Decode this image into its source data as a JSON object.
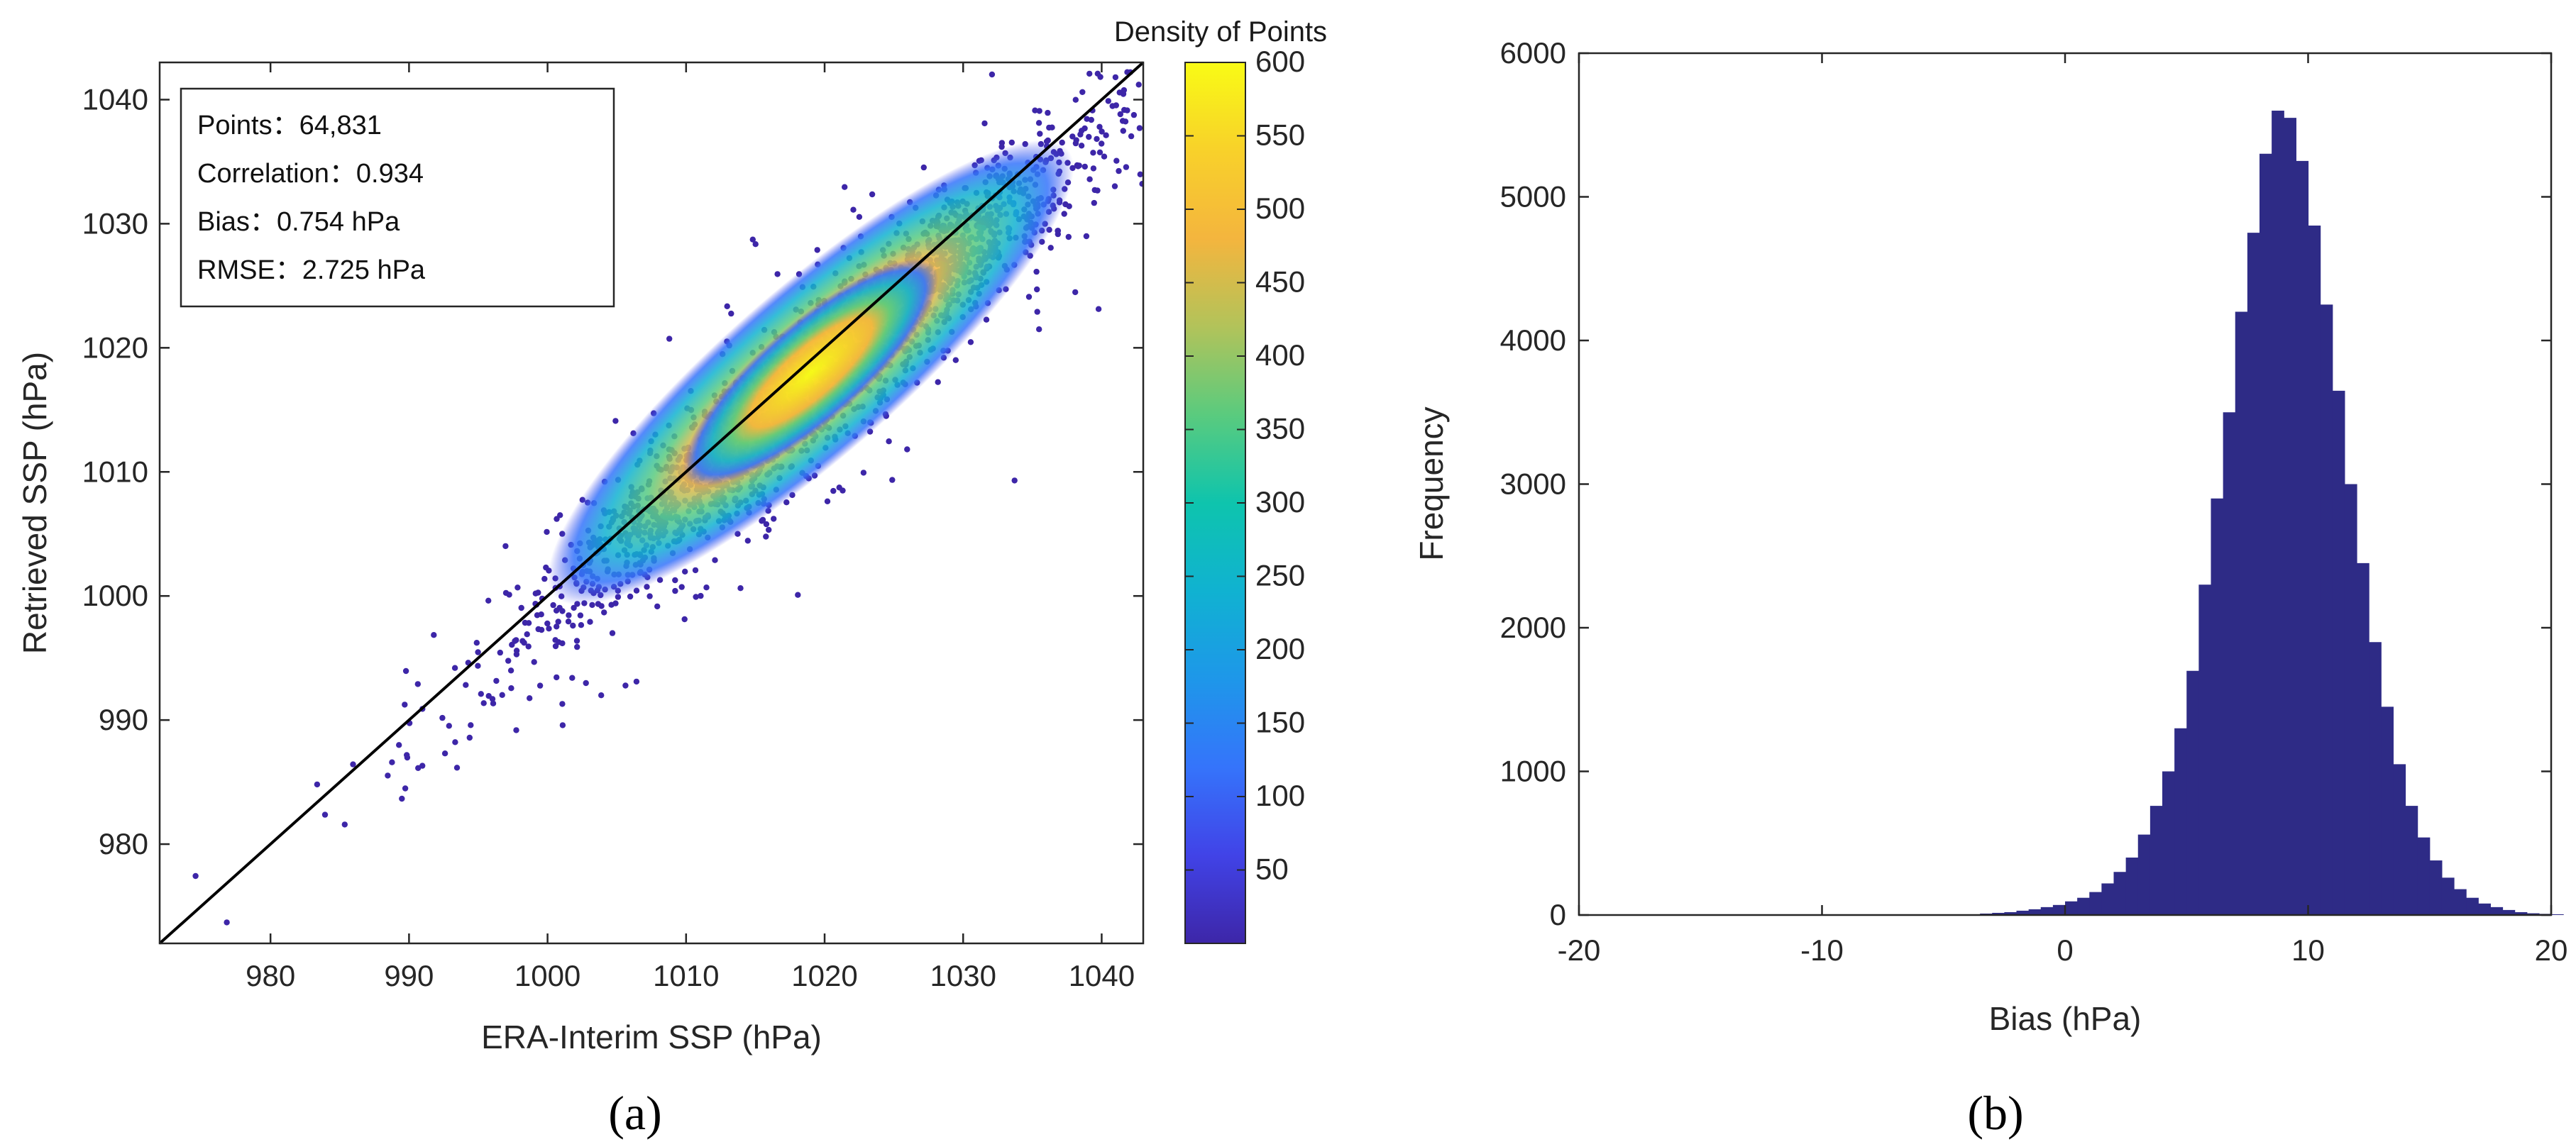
{
  "colors": {
    "histogram_fill": "#2e2b86",
    "identity_line": "#000000",
    "colormap": [
      "#3d26a8",
      "#4143e7",
      "#3574fb",
      "#1e97e9",
      "#10b2d1",
      "#0ec4ad",
      "#5acb7e",
      "#b2c35a",
      "#f4b53e",
      "#f8d12a",
      "#f9fb15"
    ]
  },
  "chart_data": [
    {
      "id": "a",
      "panel_label": "(a)",
      "type": "scatter",
      "subtype": "density-scatter",
      "xlabel": "ERA-Interim SSP (hPa)",
      "ylabel": "Retrieved SSP (hPa)",
      "xlim": [
        972,
        1043
      ],
      "ylim": [
        972,
        1043
      ],
      "xticks": [
        980,
        990,
        1000,
        1010,
        1020,
        1030,
        1040
      ],
      "yticks": [
        980,
        990,
        1000,
        1010,
        1020,
        1030,
        1040
      ],
      "reference_line": {
        "name": "1:1 line",
        "x": [
          972,
          1043
        ],
        "y": [
          972,
          1043
        ]
      },
      "density_center": {
        "x": 1019,
        "y": 1018
      },
      "stats": [
        {
          "label": "Points：",
          "value": "64,831"
        },
        {
          "label": "Correlation：",
          "value": "0.934"
        },
        {
          "label": "Bias：",
          "value": "0.754 hPa"
        },
        {
          "label": "RMSE：",
          "value": "2.725 hPa"
        }
      ],
      "colorbar": {
        "title": "Density of Points",
        "range": [
          0,
          600
        ],
        "ticks": [
          50,
          100,
          150,
          200,
          250,
          300,
          350,
          400,
          450,
          500,
          550,
          600
        ]
      }
    },
    {
      "id": "b",
      "panel_label": "(b)",
      "type": "bar",
      "subtype": "histogram",
      "xlabel": "Bias (hPa)",
      "ylabel": "Frequency",
      "xlim": [
        -20,
        20
      ],
      "ylim": [
        0,
        6000
      ],
      "xticks": [
        -20,
        -10,
        0,
        10,
        20
      ],
      "yticks": [
        0,
        1000,
        2000,
        3000,
        4000,
        5000,
        6000
      ],
      "bin_width": 0.5,
      "bins_start": -20,
      "values": [
        0,
        0,
        0,
        0,
        0,
        0,
        0,
        0,
        0,
        0,
        0,
        0,
        0,
        0,
        0,
        0,
        0,
        0,
        0,
        0,
        0,
        0,
        0,
        0,
        0,
        0,
        0,
        0,
        0,
        0,
        0,
        0,
        5,
        10,
        15,
        20,
        30,
        40,
        55,
        70,
        95,
        120,
        160,
        220,
        300,
        400,
        560,
        760,
        1000,
        1300,
        1700,
        2300,
        2900,
        3500,
        4200,
        4750,
        5300,
        5600,
        5550,
        5250,
        4800,
        4250,
        3650,
        3000,
        2450,
        1900,
        1450,
        1050,
        760,
        540,
        380,
        260,
        180,
        120,
        80,
        55,
        35,
        20,
        12,
        8,
        5,
        0,
        0,
        0,
        0,
        0,
        0,
        0,
        0,
        0,
        0,
        0,
        0,
        0,
        0,
        0,
        0,
        0,
        0,
        0,
        0,
        0,
        0,
        0,
        0,
        0,
        0,
        0,
        0,
        0,
        0,
        0,
        0,
        0,
        0,
        0,
        0,
        0,
        0,
        0
      ]
    }
  ]
}
